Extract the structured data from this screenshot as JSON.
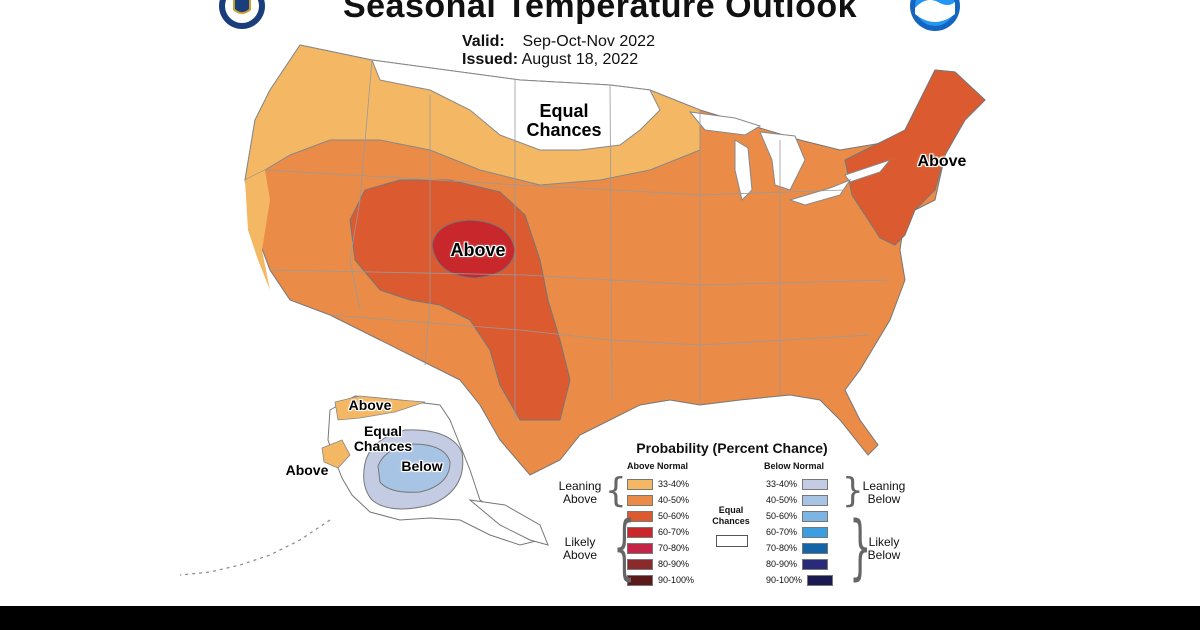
{
  "header": {
    "title": "Seasonal Temperature Outlook",
    "valid_label": "Valid:",
    "valid_value": "Sep-Oct-Nov 2022",
    "issued_label": "Issued:",
    "issued_value": "August 18, 2022"
  },
  "map_labels": {
    "north_equal_chances_line1": "Equal",
    "north_equal_chances_line2": "Chances",
    "rockies_above": "Above",
    "northeast_above": "Above",
    "alaska_north_above": "Above",
    "alaska_equal_line1": "Equal",
    "alaska_equal_line2": "Chances",
    "alaska_west_above": "Above",
    "alaska_below": "Below"
  },
  "legend": {
    "title": "Probability (Percent Chance)",
    "above_header": "Above Normal",
    "below_header": "Below Normal",
    "leaning_above_line1": "Leaning",
    "leaning_above_line2": "Above",
    "likely_above_line1": "Likely",
    "likely_above_line2": "Above",
    "leaning_below_line1": "Leaning",
    "leaning_below_line2": "Below",
    "likely_below_line1": "Likely",
    "likely_below_line2": "Below",
    "equal_chances_line1": "Equal",
    "equal_chances_line2": "Chances",
    "above": [
      {
        "range": "33-40%",
        "color": "#f4b864"
      },
      {
        "range": "40-50%",
        "color": "#ea8c48"
      },
      {
        "range": "50-60%",
        "color": "#dc5a2f"
      },
      {
        "range": "60-70%",
        "color": "#c8282b"
      },
      {
        "range": "70-80%",
        "color": "#c42448"
      },
      {
        "range": "80-90%",
        "color": "#8b2a2a"
      },
      {
        "range": "90-100%",
        "color": "#5a1a1a"
      }
    ],
    "below": [
      {
        "range": "33-40%",
        "color": "#c4cce4"
      },
      {
        "range": "40-50%",
        "color": "#a8c4e4"
      },
      {
        "range": "50-60%",
        "color": "#7eb4e4"
      },
      {
        "range": "60-70%",
        "color": "#3a9ee0"
      },
      {
        "range": "70-80%",
        "color": "#1464a8"
      },
      {
        "range": "80-90%",
        "color": "#2a2a7a"
      },
      {
        "range": "90-100%",
        "color": "#1a1a50"
      }
    ]
  },
  "colors": {
    "equal_chances": "#ffffff",
    "leaning_above_light": "#f4b864",
    "leaning_above": "#ea8c48",
    "likely_above_50": "#dc5a2f",
    "likely_above_60": "#c8282b",
    "leaning_below_light": "#c4cce4",
    "leaning_below": "#a8c4e4"
  }
}
